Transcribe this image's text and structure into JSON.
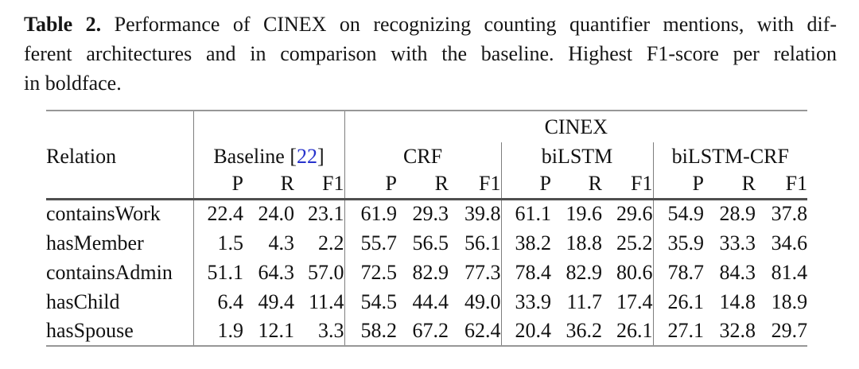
{
  "caption": {
    "label": "Table 2.",
    "line1_rest": "Performance of CINEX on recognizing counting quantifier mentions, with dif-",
    "line2": "ferent architectures and in comparison with the baseline. Highest F1-score per relation",
    "line3": "in boldface."
  },
  "colors": {
    "citation_blue": "#2733cc",
    "thin_rule_gray": "#979797",
    "heavy_rule_gray": "#4f4f4f",
    "vertical_rule_gray": "#7e7e7e"
  },
  "table": {
    "header": {
      "relation_label": "Relation",
      "cinex_label": "CINEX",
      "baseline": {
        "name": "Baseline",
        "cite_open": "[",
        "cite_num": "22",
        "cite_close": "]"
      },
      "group_crf": "CRF",
      "group_bilstm": "biLSTM",
      "group_bilstm_crf": "biLSTM-CRF",
      "metrics": [
        "P",
        "R",
        "F1"
      ]
    },
    "rows": [
      {
        "relation": "containsWork",
        "baseline": [
          "22.4",
          "24.0",
          "23.1"
        ],
        "crf": [
          "61.9",
          "29.3",
          "39.8"
        ],
        "bilstm": [
          "61.1",
          "19.6",
          "29.6"
        ],
        "bilstm_crf": [
          "54.9",
          "28.9",
          "37.8"
        ],
        "bold_f1": "crf"
      },
      {
        "relation": "hasMember",
        "baseline": [
          "1.5",
          "4.3",
          "2.2"
        ],
        "crf": [
          "55.7",
          "56.5",
          "56.1"
        ],
        "bilstm": [
          "38.2",
          "18.8",
          "25.2"
        ],
        "bilstm_crf": [
          "35.9",
          "33.3",
          "34.6"
        ],
        "bold_f1": "crf"
      },
      {
        "relation": "containsAdmin",
        "baseline": [
          "51.1",
          "64.3",
          "57.0"
        ],
        "crf": [
          "72.5",
          "82.9",
          "77.3"
        ],
        "bilstm": [
          "78.4",
          "82.9",
          "80.6"
        ],
        "bilstm_crf": [
          "78.7",
          "84.3",
          "81.4"
        ],
        "bold_f1": "bilstm_crf"
      },
      {
        "relation": "hasChild",
        "baseline": [
          "6.4",
          "49.4",
          "11.4"
        ],
        "crf": [
          "54.5",
          "44.4",
          "49.0"
        ],
        "bilstm": [
          "33.9",
          "11.7",
          "17.4"
        ],
        "bilstm_crf": [
          "26.1",
          "14.8",
          "18.9"
        ],
        "bold_f1": "crf"
      },
      {
        "relation": "hasSpouse",
        "baseline": [
          "1.9",
          "12.1",
          "3.3"
        ],
        "crf": [
          "58.2",
          "67.2",
          "62.4"
        ],
        "bilstm": [
          "20.4",
          "36.2",
          "26.1"
        ],
        "bilstm_crf": [
          "27.1",
          "32.8",
          "29.7"
        ],
        "bold_f1": "crf"
      }
    ]
  }
}
